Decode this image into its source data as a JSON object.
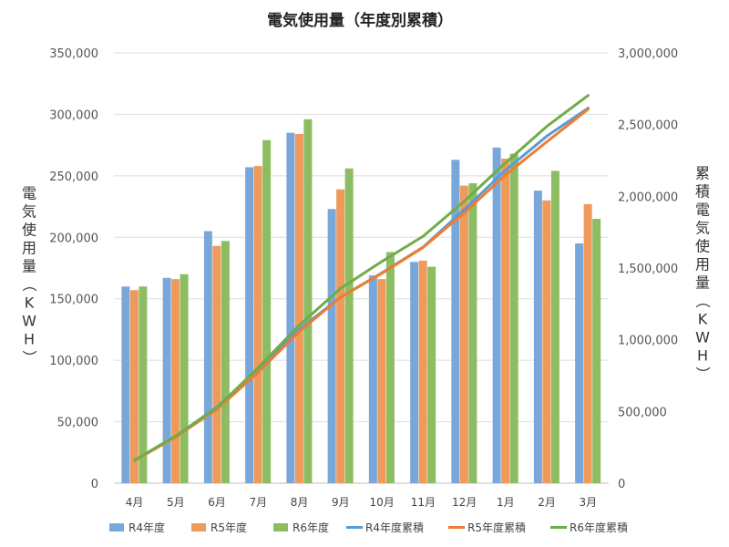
{
  "chart_data": {
    "type": "bar",
    "title": "電気使用量（年度別累積）",
    "categories": [
      "4月",
      "5月",
      "6月",
      "7月",
      "8月",
      "9月",
      "10月",
      "11月",
      "12月",
      "1月",
      "2月",
      "3月"
    ],
    "ylabel": "電気使用量（KWH）",
    "y2label": "累積電気使用量（KWH）",
    "ylim": [
      0,
      350000
    ],
    "y2lim": [
      0,
      3000000
    ],
    "yticks": [
      "0",
      "50,000",
      "100,000",
      "150,000",
      "200,000",
      "250,000",
      "300,000",
      "350,000"
    ],
    "y2ticks": [
      "0",
      "500,000",
      "1,000,000",
      "1,500,000",
      "2,000,000",
      "2,500,000",
      "3,000,000"
    ],
    "grid": true,
    "legend_position": "bottom",
    "colors": {
      "r4": "#7aa7da",
      "r5": "#ef9a5b",
      "r6": "#8cbd62",
      "r4_line": "#5b9bd5",
      "r5_line": "#ed7d31",
      "r6_line": "#70ad47"
    },
    "series": [
      {
        "name": "R4年度",
        "kind": "bar",
        "axis": "left",
        "values": [
          160000,
          167000,
          205000,
          257000,
          285000,
          223000,
          169000,
          180000,
          263000,
          273000,
          238000,
          195000
        ]
      },
      {
        "name": "R5年度",
        "kind": "bar",
        "axis": "left",
        "values": [
          157000,
          166000,
          193000,
          258000,
          284000,
          239000,
          166000,
          181000,
          242000,
          264000,
          230000,
          227000
        ]
      },
      {
        "name": "R6年度",
        "kind": "bar",
        "axis": "left",
        "values": [
          160000,
          170000,
          197000,
          279000,
          296000,
          256000,
          188000,
          176000,
          244000,
          268000,
          254000,
          215000
        ]
      },
      {
        "name": "R4年度累積",
        "kind": "line",
        "axis": "right",
        "values": [
          160000,
          327000,
          532000,
          789000,
          1074000,
          1297000,
          1466000,
          1646000,
          1909000,
          2182000,
          2420000,
          2615000
        ]
      },
      {
        "name": "R5年度累積",
        "kind": "line",
        "axis": "right",
        "values": [
          157000,
          323000,
          516000,
          774000,
          1058000,
          1297000,
          1463000,
          1644000,
          1886000,
          2150000,
          2380000,
          2607000
        ]
      },
      {
        "name": "R6年度累積",
        "kind": "line",
        "axis": "right",
        "values": [
          160000,
          330000,
          527000,
          806000,
          1102000,
          1358000,
          1546000,
          1722000,
          1966000,
          2234000,
          2488000,
          2703000
        ]
      }
    ]
  }
}
